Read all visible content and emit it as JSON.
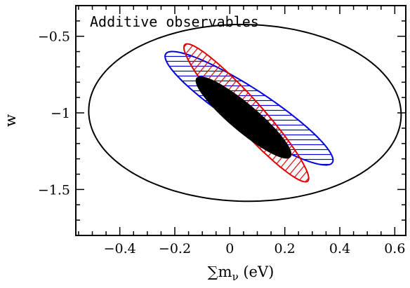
{
  "chart_data": {
    "type": "contour",
    "title": "",
    "annotation": "Additive observables",
    "xlabel": {
      "prefix": "∑m",
      "subscript": "ν",
      "suffix": " (eV)"
    },
    "ylabel": "w",
    "xlim": [
      -0.56,
      0.64
    ],
    "ylim": [
      -1.8,
      -0.3
    ],
    "xticks": [
      -0.4,
      -0.2,
      0,
      0.2,
      0.4,
      0.6
    ],
    "xtick_labels": [
      "−0.4",
      "−0.2",
      "0",
      "0.2",
      "0.4",
      "0.6"
    ],
    "yticks": [
      -1.5,
      -1,
      -0.5
    ],
    "ytick_labels": [
      "−1.5",
      "−1",
      "−0.5"
    ],
    "x_minor_step": 0.05,
    "y_minor_step": 0.1,
    "grid": false,
    "legend": "none",
    "series": [
      {
        "id": "outer",
        "shape": "ellipse",
        "center": [
          0.055,
          -1.0
        ],
        "semi_axes": [
          0.565,
          0.58
        ],
        "angle_deg": 27,
        "style": "outline",
        "color": "#000000"
      },
      {
        "id": "blue",
        "shape": "ellipse",
        "center": [
          0.07,
          -0.97
        ],
        "semi_axes": [
          0.47,
          0.098
        ],
        "angle_deg": -51,
        "style": "horizontal-hatch",
        "color": "#0000dd"
      },
      {
        "id": "red",
        "shape": "ellipse",
        "center": [
          0.06,
          -1.0
        ],
        "semi_axes": [
          0.5,
          0.065
        ],
        "angle_deg": -64,
        "style": "diagonal-hatch",
        "color": "#dd0000"
      },
      {
        "id": "black",
        "shape": "ellipse",
        "center": [
          0.05,
          -1.03
        ],
        "semi_axes": [
          0.31,
          0.062
        ],
        "angle_deg": -58,
        "style": "filled",
        "color": "#000000"
      }
    ]
  }
}
